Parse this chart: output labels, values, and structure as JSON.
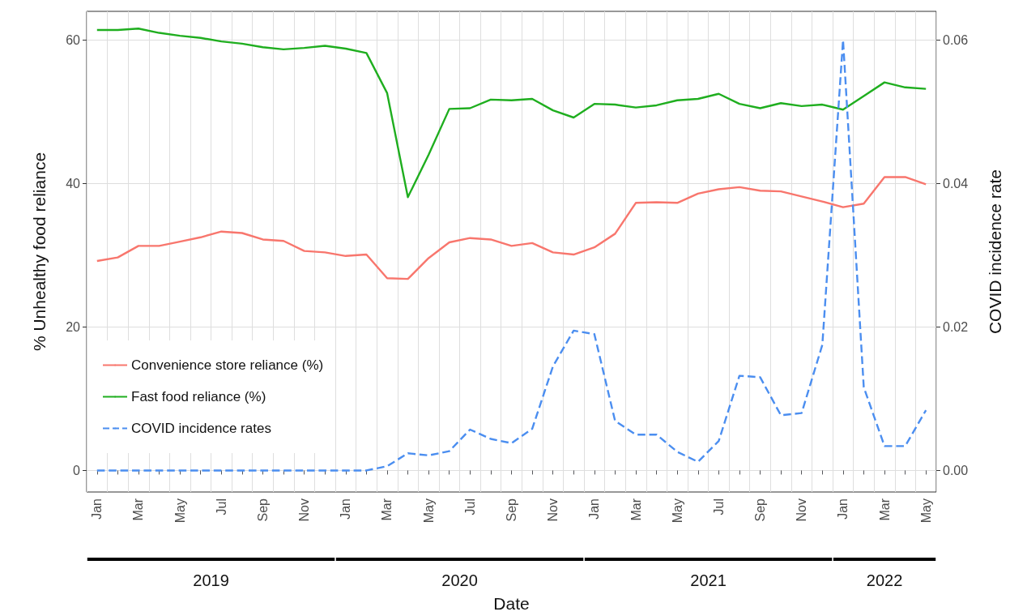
{
  "chart_data": {
    "type": "line",
    "xlabel": "Date",
    "ylabel": "% Unhealthy food reliance",
    "y2label": "COVID incidence rate",
    "categories": [
      "Jan",
      null,
      "Mar",
      null,
      "May",
      null,
      "Jul",
      null,
      "Sep",
      null,
      "Nov",
      null,
      "Jan",
      null,
      "Mar",
      null,
      "May",
      null,
      "Jul",
      null,
      "Sep",
      null,
      "Nov",
      null,
      "Jan",
      null,
      "Mar",
      null,
      "May",
      null,
      "Jul",
      null,
      "Sep",
      null,
      "Nov",
      null,
      "Jan",
      null,
      "Mar",
      null,
      "May"
    ],
    "series": [
      {
        "name": "Convenience store reliance (%)",
        "color": "#f8766d",
        "line_style": "solid",
        "values": [
          29.2,
          29.7,
          31.3,
          31.3,
          31.9,
          32.5,
          33.3,
          33.1,
          32.2,
          32.0,
          30.6,
          30.4,
          29.9,
          30.1,
          26.8,
          26.7,
          29.6,
          31.8,
          32.4,
          32.2,
          31.3,
          31.7,
          30.4,
          30.1,
          31.1,
          33.0,
          37.3,
          37.4,
          37.3,
          38.6,
          39.2,
          39.5,
          39.0,
          38.9,
          38.2,
          37.5,
          36.7,
          37.2,
          40.9,
          40.9,
          39.9
        ]
      },
      {
        "name": "Fast food reliance (%)",
        "color": "#1fae1f",
        "line_style": "solid",
        "values": [
          61.4,
          61.4,
          61.6,
          61.0,
          60.6,
          60.3,
          59.8,
          59.5,
          59.0,
          58.7,
          58.9,
          59.2,
          58.8,
          58.2,
          52.6,
          38.1,
          44.0,
          50.4,
          50.5,
          51.7,
          51.6,
          51.8,
          50.2,
          49.2,
          51.1,
          51.0,
          50.6,
          50.9,
          51.6,
          51.8,
          52.5,
          51.1,
          50.5,
          51.2,
          50.8,
          51.0,
          50.3,
          52.2,
          54.1,
          53.4,
          53.2
        ]
      },
      {
        "name": "COVID incidence rates",
        "color": "#4b8ef0",
        "line_style": "dashed",
        "axis": "y2",
        "values": [
          0,
          0,
          0,
          0,
          0,
          0,
          0,
          0,
          0,
          0,
          0,
          0,
          0,
          0,
          0.0006,
          0.0024,
          0.0021,
          0.0027,
          0.0057,
          0.0044,
          0.0038,
          0.0058,
          0.0145,
          0.0195,
          0.019,
          0.0069,
          0.005,
          0.005,
          0.0026,
          0.0012,
          0.0041,
          0.0132,
          0.013,
          0.0077,
          0.008,
          0.0175,
          0.06,
          0.0116,
          0.0034,
          0.0034,
          0.0084
        ]
      }
    ],
    "ylim": [
      -3,
      64
    ],
    "yticks": [
      0,
      20,
      40,
      60
    ],
    "y2lim": [
      -0.003,
      0.064
    ],
    "y2ticks": [
      {
        "value": 0,
        "label": "0.00"
      },
      {
        "value": 0.02,
        "label": "0.02"
      },
      {
        "value": 0.04,
        "label": "0.04"
      },
      {
        "value": 0.06,
        "label": "0.06"
      }
    ],
    "annotations": [
      "2019",
      "2020",
      "2021",
      "2022"
    ],
    "grid": true,
    "legend": "left",
    "marker": "none"
  }
}
